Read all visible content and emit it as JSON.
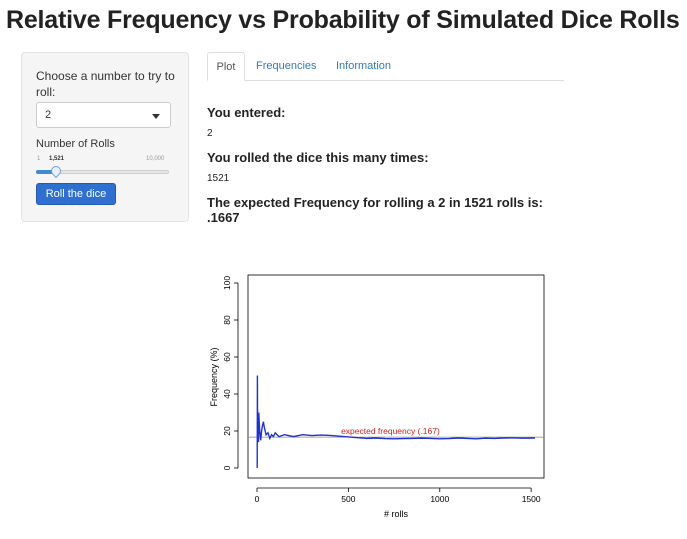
{
  "app_title": "Relative Frequency vs Probability of Simulated Dice Rolls",
  "sidebar": {
    "choose_label": "Choose a number to try to roll:",
    "selected_number": "2",
    "rolls_label": "Number of Rolls",
    "slider": {
      "min_label": "1",
      "value_label": "1,521",
      "max_label": "10,000",
      "value": 1521,
      "min": 1,
      "max": 10000
    },
    "roll_button_label": "Roll the dice"
  },
  "tabs": [
    {
      "label": "Plot",
      "active": true
    },
    {
      "label": "Frequencies",
      "active": false
    },
    {
      "label": "Information",
      "active": false
    }
  ],
  "output": {
    "entered_heading": "You entered:",
    "entered_value": "2",
    "rolled_heading": "You rolled the dice this many times:",
    "rolled_value": "1521",
    "expected_line1": "The expected Frequency for rolling a 2 in 1521 rolls is:",
    "expected_line2": ".1667"
  },
  "colors": {
    "accent": "#2f6fd0",
    "series": "#2233cc",
    "expected_label": "#cc2222"
  },
  "chart_data": {
    "type": "line",
    "xlabel": "# rolls",
    "ylabel": "Frequency (%)",
    "xlim": [
      0,
      1521
    ],
    "ylim": [
      0,
      100
    ],
    "xticks": [
      0,
      500,
      1000,
      1500
    ],
    "yticks": [
      0,
      20,
      40,
      60,
      80,
      100
    ],
    "reference_line": {
      "y": 16.67,
      "label": "expected frequency (.167)"
    },
    "series": [
      {
        "x": [
          1,
          2,
          3,
          4,
          5,
          6,
          8,
          10,
          12,
          15,
          18,
          20,
          25,
          30,
          35,
          40,
          45,
          50,
          60,
          70,
          80,
          90,
          100,
          120,
          150,
          200,
          250,
          300,
          350,
          400,
          450,
          500,
          550,
          600,
          650,
          700,
          750,
          800,
          850,
          900,
          950,
          1000,
          1050,
          1100,
          1150,
          1200,
          1250,
          1300,
          1350,
          1400,
          1450,
          1521
        ],
        "y": [
          0,
          50,
          33,
          25,
          20,
          17,
          14,
          30,
          25,
          20,
          17,
          15,
          20,
          23,
          25,
          22,
          20,
          18,
          19,
          16,
          18,
          17,
          19,
          17,
          18,
          17,
          18,
          17.5,
          17.8,
          17.6,
          17.2,
          16.8,
          16.4,
          16.0,
          16.2,
          15.9,
          15.8,
          15.9,
          16.0,
          16.1,
          16.0,
          15.8,
          15.9,
          16.2,
          16.0,
          15.8,
          16.1,
          16.0,
          16.2,
          16.3,
          16.1,
          16.2
        ]
      }
    ]
  }
}
